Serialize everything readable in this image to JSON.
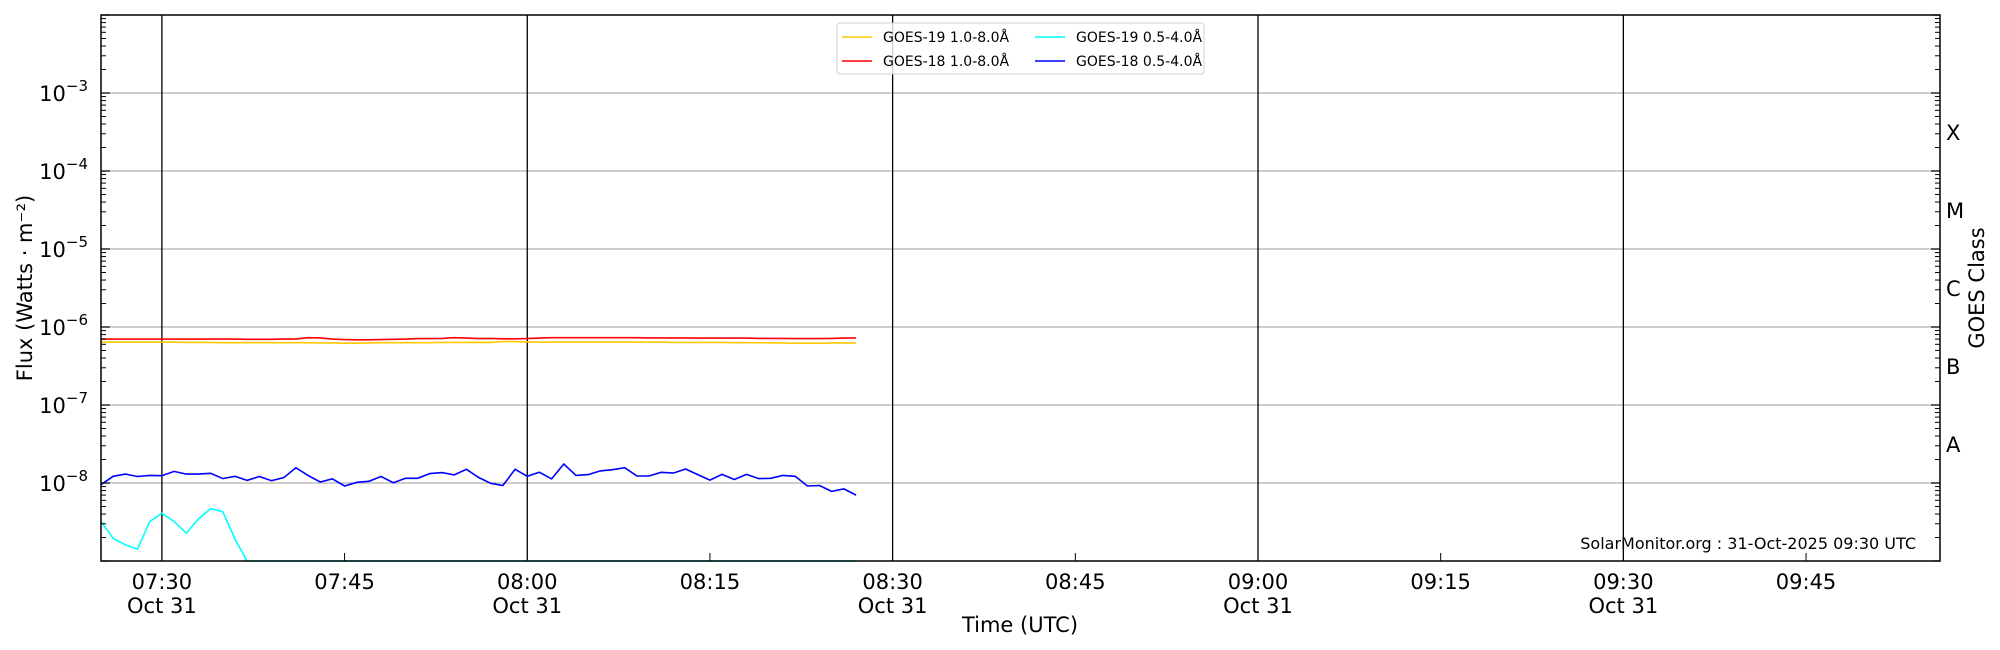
{
  "chart_data": {
    "type": "line",
    "title": "",
    "xlabel": "Time (UTC)",
    "ylabel": "Flux (Watts · m⁻²)",
    "ylabel_right": "GOES Class",
    "y_scale": "log",
    "ylim": [
      1e-09,
      0.01
    ],
    "xlim": [
      "07:25",
      "09:56"
    ],
    "date": "Oct 31",
    "grid": "horizontal at decades",
    "legend_placement": "top-center",
    "x_ticks": [
      {
        "time": "07:30",
        "label": "07:30",
        "date": "Oct 31",
        "major": true
      },
      {
        "time": "07:45",
        "label": "07:45",
        "date": "",
        "major": false
      },
      {
        "time": "08:00",
        "label": "08:00",
        "date": "Oct 31",
        "major": true
      },
      {
        "time": "08:15",
        "label": "08:15",
        "date": "",
        "major": false
      },
      {
        "time": "08:30",
        "label": "08:30",
        "date": "Oct 31",
        "major": true
      },
      {
        "time": "08:45",
        "label": "08:45",
        "date": "",
        "major": false
      },
      {
        "time": "09:00",
        "label": "09:00",
        "date": "Oct 31",
        "major": true
      },
      {
        "time": "09:15",
        "label": "09:15",
        "date": "",
        "major": false
      },
      {
        "time": "09:30",
        "label": "09:30",
        "date": "Oct 31",
        "major": true
      },
      {
        "time": "09:45",
        "label": "09:45",
        "date": "",
        "major": false
      }
    ],
    "y_ticks": [
      {
        "exp": -3,
        "base": "10",
        "sup": "−3"
      },
      {
        "exp": -4,
        "base": "10",
        "sup": "−4"
      },
      {
        "exp": -5,
        "base": "10",
        "sup": "−5"
      },
      {
        "exp": -6,
        "base": "10",
        "sup": "−6"
      },
      {
        "exp": -7,
        "base": "10",
        "sup": "−7"
      },
      {
        "exp": -8,
        "base": "10",
        "sup": "−8"
      }
    ],
    "goes_classes": [
      {
        "label": "X",
        "flux_min": 0.0001
      },
      {
        "label": "M",
        "flux_min": 1e-05
      },
      {
        "label": "C",
        "flux_min": 1e-06
      },
      {
        "label": "B",
        "flux_min": 1e-07
      },
      {
        "label": "A",
        "flux_min": 1e-08
      }
    ],
    "x_start": "07:25",
    "x_step_minutes": 1,
    "series": [
      {
        "name": "GOES-19 1.0-8.0Å",
        "color": "#ffc800",
        "values": [
          6.4e-07,
          6.4e-07,
          6.4e-07,
          6.4e-07,
          6.4e-07,
          6.4e-07,
          6.4e-07,
          6.35e-07,
          6.35e-07,
          6.35e-07,
          6.3e-07,
          6.3e-07,
          6.3e-07,
          6.3e-07,
          6.3e-07,
          6.3e-07,
          6.3e-07,
          6.3e-07,
          6.25e-07,
          6.25e-07,
          6.2e-07,
          6.2e-07,
          6.25e-07,
          6.3e-07,
          6.3e-07,
          6.3e-07,
          6.3e-07,
          6.3e-07,
          6.35e-07,
          6.35e-07,
          6.35e-07,
          6.35e-07,
          6.35e-07,
          6.5e-07,
          6.5e-07,
          6.45e-07,
          6.4e-07,
          6.4e-07,
          6.4e-07,
          6.4e-07,
          6.4e-07,
          6.4e-07,
          6.4e-07,
          6.4e-07,
          6.4e-07,
          6.4e-07,
          6.4e-07,
          6.35e-07,
          6.35e-07,
          6.35e-07,
          6.35e-07,
          6.35e-07,
          6.3e-07,
          6.3e-07,
          6.3e-07,
          6.25e-07,
          6.25e-07,
          6.2e-07,
          6.2e-07,
          6.2e-07,
          6.25e-07,
          6.25e-07,
          6.25e-07
        ]
      },
      {
        "name": "GOES-19 0.5-4.0Å",
        "color": "#00ffff",
        "values": [
          3.2e-09,
          1.96e-09,
          1.61e-09,
          1.42e-09,
          3.2e-09,
          4.1e-09,
          3.2e-09,
          2.28e-09,
          3.45e-09,
          4.7e-09,
          4.28e-09,
          1.91e-09,
          1e-09,
          1e-09,
          1e-09,
          1e-09,
          1e-09,
          1e-09,
          1e-09,
          1e-09,
          1e-09,
          1e-09,
          1e-09,
          1e-09,
          1e-09,
          1e-09,
          1e-09,
          1e-09,
          1e-09,
          1e-09,
          1e-09,
          1e-09,
          1e-09,
          1e-09,
          1e-09,
          1e-09,
          1e-09,
          1e-09,
          1e-09,
          1e-09,
          1e-09,
          1e-09,
          1e-09,
          1e-09,
          1e-09,
          1e-09,
          1e-09,
          1e-09,
          1e-09,
          1e-09,
          1e-09,
          1e-09,
          1e-09,
          1e-09,
          1e-09,
          1e-09,
          1e-09,
          1e-09,
          1e-09,
          1e-09,
          1e-09,
          1e-09,
          1e-09
        ]
      },
      {
        "name": "GOES-18 1.0-8.0Å",
        "color": "#ff0000",
        "values": [
          7e-07,
          7e-07,
          7e-07,
          7e-07,
          7e-07,
          7e-07,
          7e-07,
          7e-07,
          7e-07,
          7e-07,
          7e-07,
          7e-07,
          6.95e-07,
          6.95e-07,
          6.95e-07,
          7e-07,
          7e-07,
          7.3e-07,
          7.25e-07,
          7e-07,
          6.9e-07,
          6.85e-07,
          6.85e-07,
          6.9e-07,
          6.95e-07,
          7e-07,
          7.1e-07,
          7.1e-07,
          7.15e-07,
          7.3e-07,
          7.2e-07,
          7.1e-07,
          7.15e-07,
          7.05e-07,
          7.05e-07,
          7.1e-07,
          7.2e-07,
          7.3e-07,
          7.3e-07,
          7.3e-07,
          7.3e-07,
          7.3e-07,
          7.3e-07,
          7.3e-07,
          7.3e-07,
          7.25e-07,
          7.25e-07,
          7.25e-07,
          7.25e-07,
          7.2e-07,
          7.2e-07,
          7.2e-07,
          7.2e-07,
          7.2e-07,
          7.15e-07,
          7.15e-07,
          7.15e-07,
          7.1e-07,
          7.1e-07,
          7.1e-07,
          7.15e-07,
          7.2e-07,
          7.25e-07
        ]
      },
      {
        "name": "GOES-18 0.5-4.0Å",
        "color": "#0000ff",
        "values": [
          9.5e-09,
          1.22e-08,
          1.3e-08,
          1.21e-08,
          1.25e-08,
          1.24e-08,
          1.41e-08,
          1.3e-08,
          1.3e-08,
          1.33e-08,
          1.14e-08,
          1.22e-08,
          1.08e-08,
          1.21e-08,
          1.07e-08,
          1.17e-08,
          1.57e-08,
          1.25e-08,
          1.03e-08,
          1.13e-08,
          9.15e-09,
          1.02e-08,
          1.05e-08,
          1.21e-08,
          1.01e-08,
          1.15e-08,
          1.15e-08,
          1.32e-08,
          1.36e-08,
          1.27e-08,
          1.5e-08,
          1.18e-08,
          9.9e-09,
          9.3e-09,
          1.5e-08,
          1.22e-08,
          1.37e-08,
          1.13e-08,
          1.75e-08,
          1.25e-08,
          1.28e-08,
          1.43e-08,
          1.48e-08,
          1.57e-08,
          1.23e-08,
          1.23e-08,
          1.37e-08,
          1.34e-08,
          1.51e-08,
          1.28e-08,
          1.09e-08,
          1.29e-08,
          1.11e-08,
          1.29e-08,
          1.14e-08,
          1.15e-08,
          1.25e-08,
          1.22e-08,
          9.15e-09,
          9.3e-09,
          7.8e-09,
          8.4e-09,
          7e-09
        ]
      }
    ],
    "legend_order": [
      0,
      1,
      2,
      3
    ],
    "annotation": "SolarMonitor.org : 31-Oct-2025 09:30 UTC"
  }
}
